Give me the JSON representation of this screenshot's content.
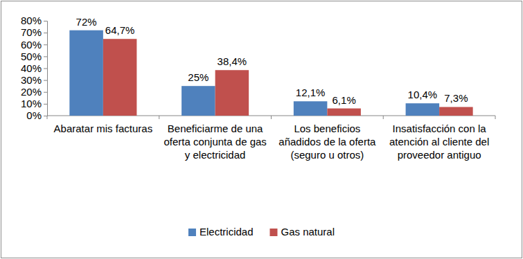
{
  "chart_data": {
    "type": "bar",
    "categories": [
      "Abaratar mis facturas",
      "Beneficiarme de una oferta conjunta de gas y electricidad",
      "Los beneficios añadidos de la oferta (seguro u otros)",
      "Insatisfacción con la atención al cliente del proveedor antiguo"
    ],
    "series": [
      {
        "name": "Electricidad",
        "color": "#4f81bd",
        "values": [
          72,
          25,
          12.1,
          10.4
        ],
        "value_labels": [
          "72%",
          "25%",
          "12,1%",
          "10,4%"
        ]
      },
      {
        "name": "Gas natural",
        "color": "#c0504d",
        "values": [
          64.7,
          38.4,
          6.1,
          7.3
        ],
        "value_labels": [
          "64,7%",
          "38,4%",
          "6,1%",
          "7,3%"
        ]
      }
    ],
    "ylim": [
      0,
      80
    ],
    "yticks": [
      {
        "value": 0,
        "label": "0%"
      },
      {
        "value": 10,
        "label": "10%"
      },
      {
        "value": 20,
        "label": "20%"
      },
      {
        "value": 30,
        "label": "30%"
      },
      {
        "value": 40,
        "label": "40%"
      },
      {
        "value": 50,
        "label": "50%"
      },
      {
        "value": 60,
        "label": "60%"
      },
      {
        "value": 70,
        "label": "70%"
      },
      {
        "value": 80,
        "label": "80%"
      }
    ],
    "grid": false,
    "legend": "bottom",
    "data_labels": true
  }
}
